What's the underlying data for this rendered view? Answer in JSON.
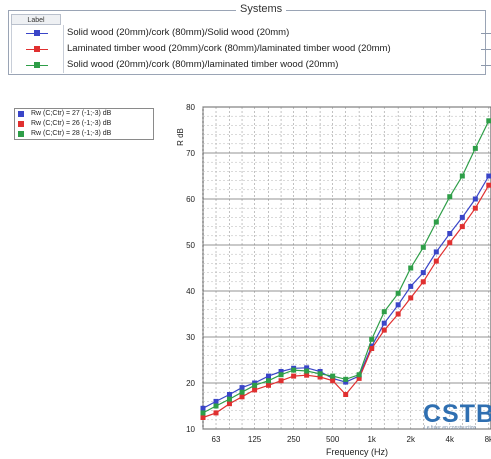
{
  "systems": {
    "title": "Systems",
    "label_header": "Label",
    "rows": [
      {
        "label": "Solid wood (20mm)/cork (80mm)/Solid wood (20mm)",
        "color": "#3a45c8"
      },
      {
        "label": "Laminated timber wood (20mm)/cork (80mm)/laminated timber wood (20mm)",
        "color": "#e03030"
      },
      {
        "label": "Solid wood (20mm)/cork (80mm)/laminated timber wood (20mm)",
        "color": "#2e9e48"
      }
    ]
  },
  "legend": {
    "items": [
      {
        "text": "Rw (C;Ctr) = 27 (-1;-3) dB",
        "color": "#3a45c8"
      },
      {
        "text": "Rw (C;Ctr) = 26 (-1;-3) dB",
        "color": "#e03030"
      },
      {
        "text": "Rw (C;Ctr) = 28 (-1;-3) dB",
        "color": "#2e9e48"
      }
    ]
  },
  "chart_data": {
    "type": "line",
    "title": "",
    "xlabel": "Frequency (Hz)",
    "ylabel": "R dB",
    "x": [
      50,
      63,
      80,
      100,
      125,
      160,
      200,
      250,
      315,
      400,
      500,
      630,
      800,
      1000,
      1250,
      1600,
      2000,
      2500,
      3150,
      4000,
      5000,
      6300,
      8000
    ],
    "x_tick_labels": [
      "63",
      "125",
      "250",
      "500",
      "1k",
      "2k",
      "4k",
      "8k"
    ],
    "x_tick_values": [
      63,
      125,
      250,
      500,
      1000,
      2000,
      4000,
      8000
    ],
    "ylim": [
      10,
      80
    ],
    "y_ticks": [
      10,
      20,
      30,
      40,
      50,
      60,
      70,
      80
    ],
    "log_x": true,
    "grid": true,
    "series": [
      {
        "name": "Solid wood (20mm)/cork (80mm)/Solid wood (20mm)",
        "color": "#3a45c8",
        "values": [
          14.5,
          16,
          17.5,
          19,
          20,
          21.5,
          22.5,
          23.2,
          23.3,
          22.5,
          21,
          20.2,
          21.5,
          28,
          33,
          37,
          41,
          44,
          48.5,
          52.5,
          56,
          60,
          65
        ]
      },
      {
        "name": "Laminated timber wood (20mm)/cork (80mm)/laminated timber wood (20mm)",
        "color": "#e03030",
        "values": [
          12.5,
          13.5,
          15.5,
          17,
          18.5,
          19.5,
          20.5,
          21.5,
          21.7,
          21.3,
          20.5,
          17.5,
          21,
          27.5,
          31.5,
          35,
          38.5,
          42,
          46.5,
          50.5,
          54,
          58,
          63
        ]
      },
      {
        "name": "Solid wood (20mm)/cork (80mm)/laminated timber wood (20mm)",
        "color": "#2e9e48",
        "values": [
          13.5,
          15,
          16.5,
          18,
          19.5,
          20.5,
          21.8,
          22.8,
          22.6,
          22,
          21.5,
          20.8,
          21.8,
          29.5,
          35.5,
          39.5,
          45,
          49.5,
          55,
          60.5,
          65,
          71,
          77
        ]
      }
    ]
  },
  "logo": {
    "text": "CSTB",
    "subtitle": "Le futur en construction"
  }
}
